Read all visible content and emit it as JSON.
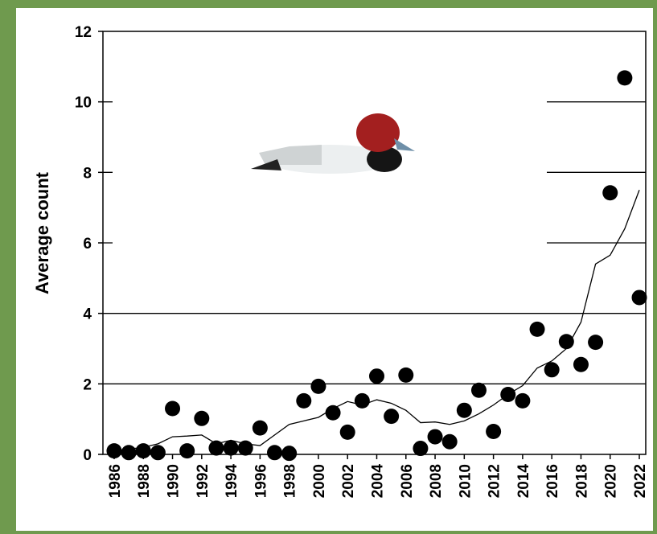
{
  "chart_data": {
    "type": "scatter",
    "y_label": "Average count",
    "x": [
      1986,
      1987,
      1988,
      1989,
      1990,
      1991,
      1992,
      1993,
      1994,
      1995,
      1996,
      1997,
      1998,
      1999,
      2000,
      2001,
      2002,
      2003,
      2004,
      2005,
      2006,
      2007,
      2008,
      2009,
      2010,
      2011,
      2012,
      2013,
      2014,
      2015,
      2016,
      2017,
      2018,
      2019,
      2020,
      2021,
      2022
    ],
    "series": [
      {
        "kind": "points",
        "color": "#000000",
        "values": [
          0.1,
          0.05,
          0.1,
          0.05,
          1.3,
          0.1,
          1.02,
          0.18,
          0.18,
          0.18,
          0.75,
          0.05,
          0.03,
          1.52,
          1.93,
          1.18,
          0.63,
          1.52,
          2.22,
          1.08,
          2.25,
          0.17,
          0.5,
          0.36,
          1.25,
          1.82,
          0.65,
          1.7,
          1.52,
          3.55,
          2.4,
          3.2,
          2.55,
          3.18,
          7.42,
          10.68,
          4.45
        ]
      },
      {
        "kind": "line",
        "color": "#000000",
        "values": [
          0.1,
          0.15,
          0.2,
          0.3,
          0.5,
          0.52,
          0.55,
          0.3,
          0.4,
          0.3,
          0.25,
          0.55,
          0.85,
          0.95,
          1.05,
          1.3,
          1.5,
          1.4,
          1.55,
          1.45,
          1.25,
          0.9,
          0.92,
          0.85,
          0.95,
          1.15,
          1.4,
          1.7,
          1.95,
          2.45,
          2.65,
          3.0,
          3.75,
          5.4,
          5.65,
          6.4,
          7.5
        ]
      }
    ],
    "xlim": [
      1985.23,
      2022.44
    ],
    "xticks": [
      1986,
      1988,
      1990,
      1992,
      1994,
      1996,
      1998,
      2000,
      2002,
      2004,
      2006,
      2008,
      2010,
      2012,
      2014,
      2016,
      2018,
      2020,
      2022
    ],
    "ylim": [
      0,
      12
    ],
    "yticks": [
      0,
      2,
      4,
      6,
      8,
      10,
      12
    ],
    "grid": true
  }
}
